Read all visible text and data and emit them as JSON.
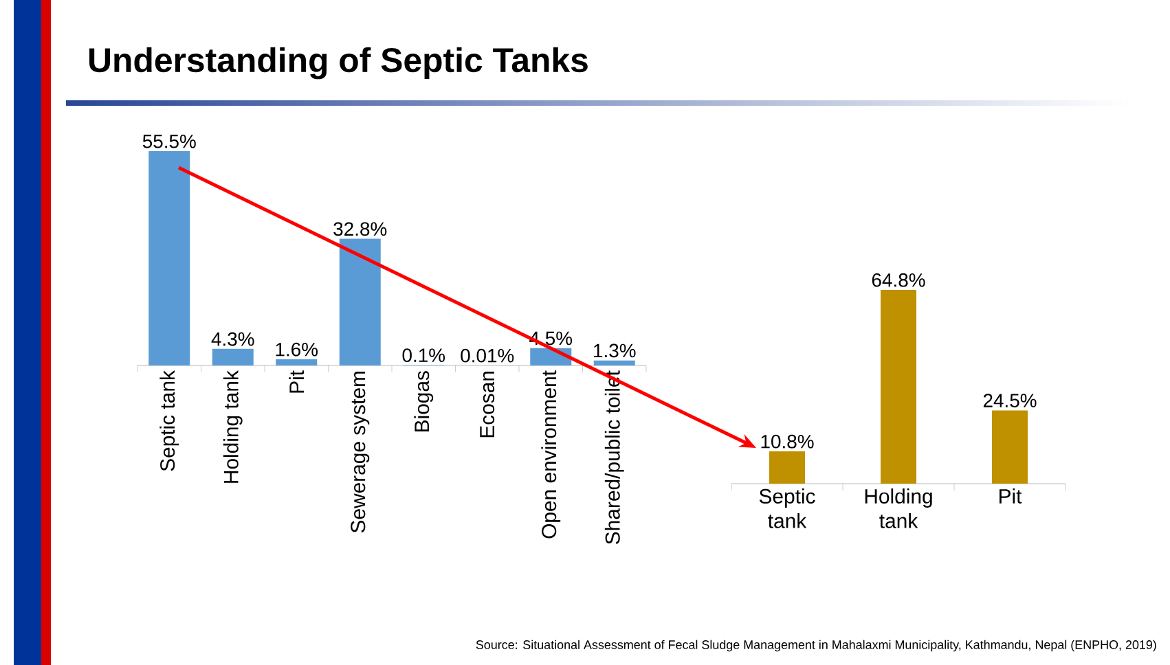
{
  "chart_data": [
    {
      "type": "bar",
      "title": "Understanding of Septic Tanks",
      "categories": [
        "Septic tank",
        "Holding tank",
        "Pit",
        "Sewerage system",
        "Biogas",
        "Ecosan",
        "Open environment",
        "Shared/public toilet"
      ],
      "values": [
        55.5,
        4.3,
        1.6,
        32.8,
        0.1,
        0.01,
        4.5,
        1.3
      ],
      "value_labels": [
        "55.5%",
        "4.3%",
        "1.6%",
        "32.8%",
        "0.1%",
        "0.01%",
        "4.5%",
        "1.3%"
      ],
      "color": "#5b9bd5"
    },
    {
      "type": "bar",
      "categories": [
        "Septic tank",
        "Holding tank",
        "Pit"
      ],
      "values": [
        10.8,
        64.8,
        24.5
      ],
      "value_labels": [
        "10.8%",
        "64.8%",
        "24.5%"
      ],
      "color": "#bf9000",
      "annotations": [
        "Source: Situational Assessment of Fecal Sludge Management in Mahalaxmi Municipality, Kathmandu, Nepal (ENPHO, 2019)"
      ]
    }
  ]
}
